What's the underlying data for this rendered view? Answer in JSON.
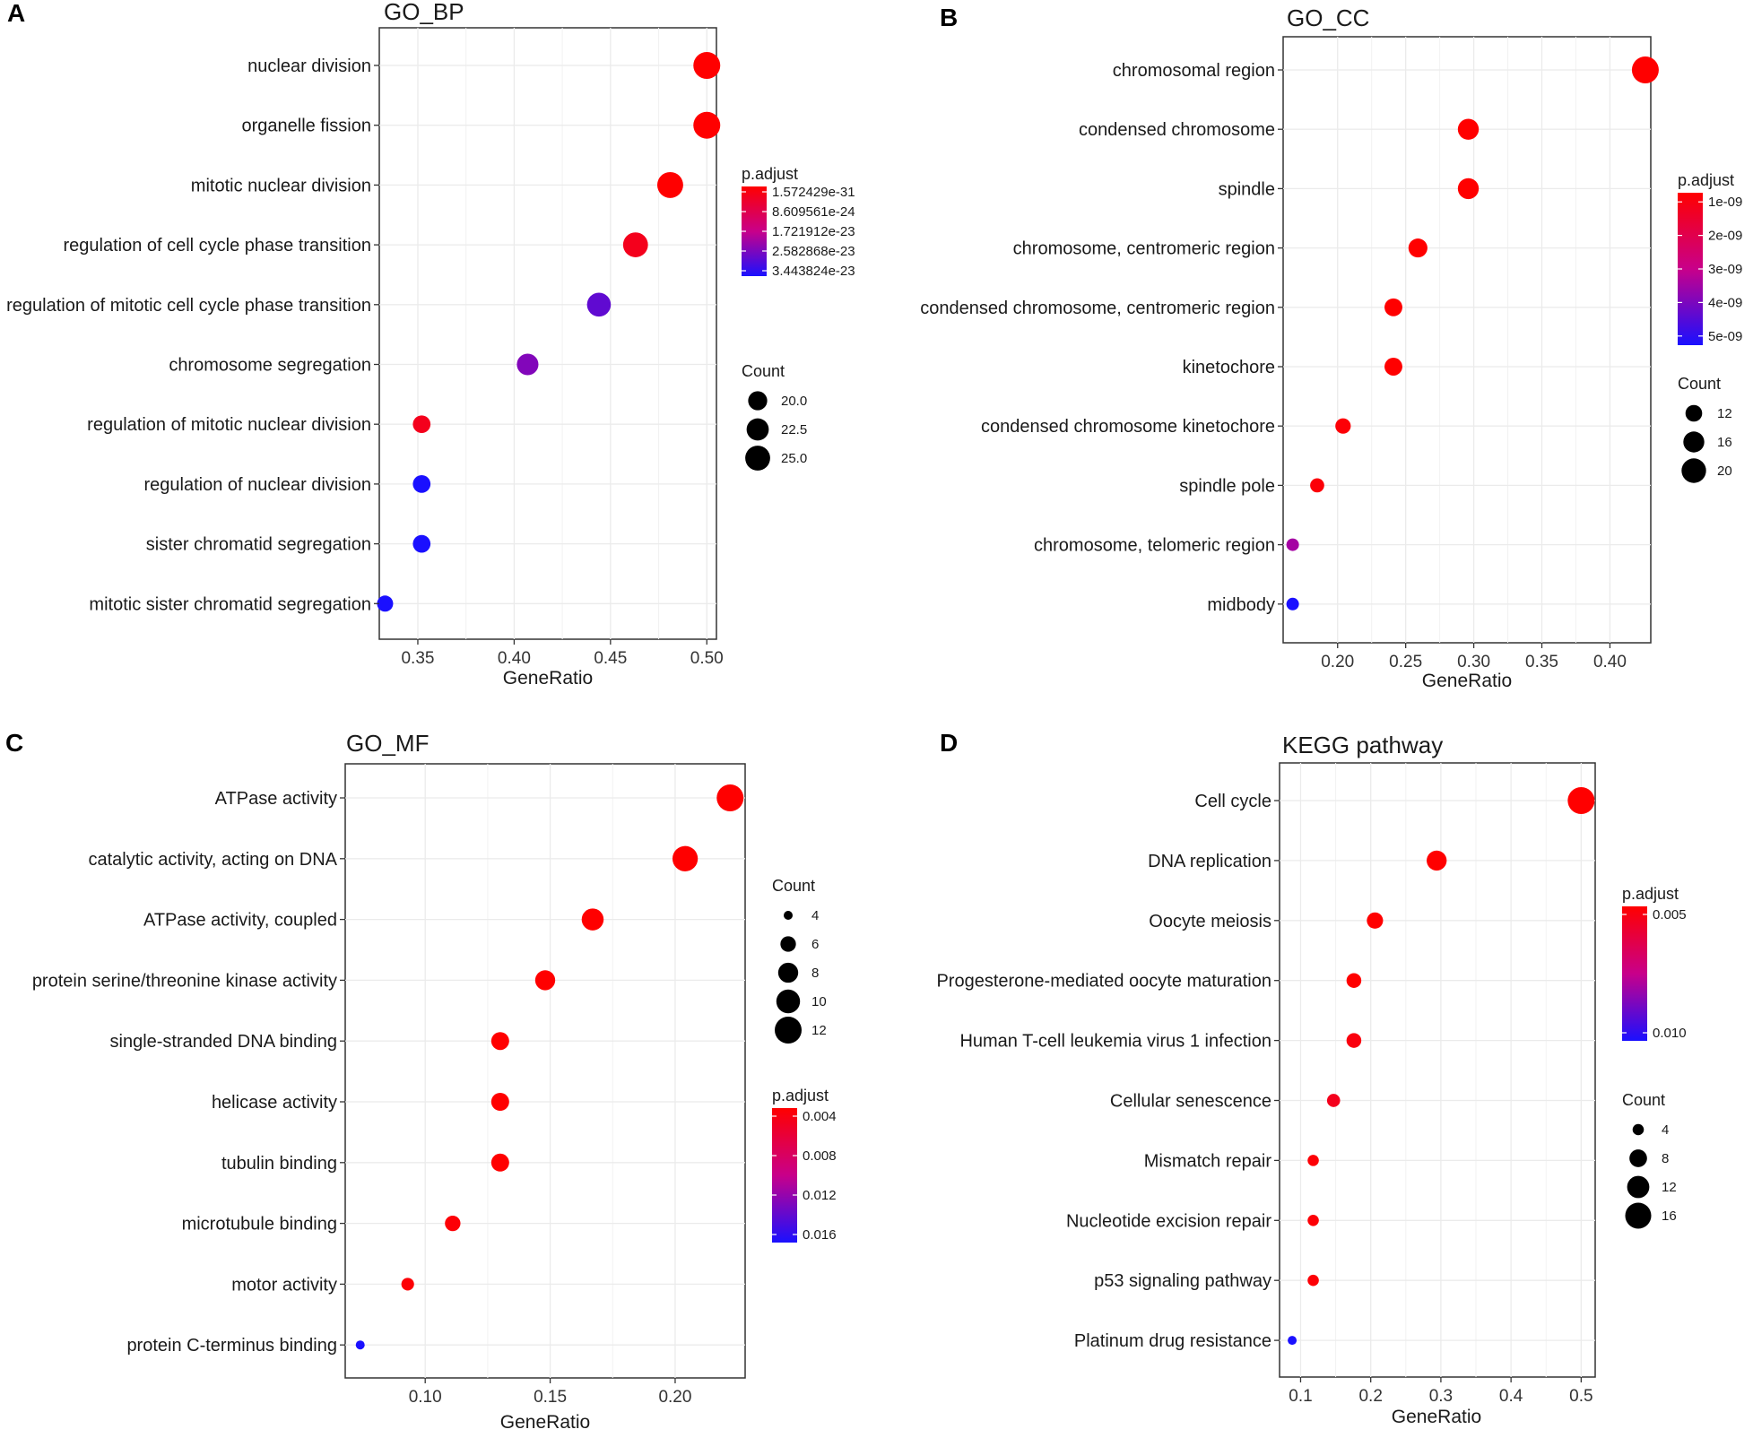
{
  "colors": {
    "low": "#0000ff",
    "high": "#ff0000",
    "dot_count_legend": "#000000",
    "grid": "#ebebeb"
  },
  "chart_data": [
    {
      "type": "scatter",
      "panel_label": "A",
      "title": "GO_BP",
      "xlabel": "GeneRatio",
      "ylabel": "",
      "xlim": [
        0.33,
        0.505
      ],
      "xticks": [
        0.35,
        0.4,
        0.45,
        0.5
      ],
      "xtick_labels": [
        "0.35",
        "0.40",
        "0.45",
        "0.50"
      ],
      "categories": [
        "nuclear division",
        "organelle fission",
        "mitotic nuclear division",
        "regulation of cell cycle phase transition",
        "regulation of mitotic cell cycle phase transition",
        "chromosome segregation",
        "regulation of mitotic nuclear division",
        "regulation of nuclear division",
        "sister chromatid segregation",
        "mitotic sister chromatid segregation"
      ],
      "x": [
        0.5,
        0.5,
        0.481,
        0.463,
        0.444,
        0.407,
        0.352,
        0.352,
        0.352,
        0.333
      ],
      "count": [
        27,
        27,
        26,
        25,
        24,
        22,
        19,
        19,
        19,
        18
      ],
      "color_fraction": [
        0.0,
        0.0,
        0.0,
        0.1,
        0.8,
        0.7,
        0.1,
        1.0,
        1.0,
        1.0
      ],
      "legend_order": [
        "color",
        "size"
      ],
      "color_legend": {
        "title": "p.adjust",
        "labels": [
          "1.572429e-31",
          "8.609561e-24",
          "1.721912e-23",
          "2.582868e-23",
          "3.443824e-23"
        ]
      },
      "size_legend": {
        "title": "Count",
        "labels": [
          "20.0",
          "22.5",
          "25.0"
        ],
        "values": [
          20,
          22.5,
          25
        ]
      }
    },
    {
      "type": "scatter",
      "panel_label": "B",
      "title": "GO_CC",
      "xlabel": "GeneRatio",
      "ylabel": "",
      "xlim": [
        0.16,
        0.43
      ],
      "xticks": [
        0.2,
        0.25,
        0.3,
        0.35,
        0.4
      ],
      "xtick_labels": [
        "0.20",
        "0.25",
        "0.30",
        "0.35",
        "0.40"
      ],
      "categories": [
        "chromosomal region",
        "condensed chromosome",
        "spindle",
        "chromosome, centromeric region",
        "condensed chromosome, centromeric region",
        "kinetochore",
        "condensed chromosome kinetochore",
        "spindle pole",
        "chromosome, telomeric region",
        "midbody"
      ],
      "x": [
        0.426,
        0.296,
        0.296,
        0.259,
        0.241,
        0.241,
        0.204,
        0.185,
        0.167,
        0.167
      ],
      "count": [
        23,
        16,
        16,
        14,
        13,
        13,
        11,
        10,
        9,
        9
      ],
      "color_fraction": [
        0.0,
        0.0,
        0.0,
        0.0,
        0.0,
        0.0,
        0.02,
        0.03,
        0.6,
        1.0
      ],
      "legend_order": [
        "color",
        "size"
      ],
      "color_legend": {
        "title": "p.adjust",
        "labels": [
          "1e-09",
          "2e-09",
          "3e-09",
          "4e-09",
          "5e-09"
        ]
      },
      "size_legend": {
        "title": "Count",
        "labels": [
          "12",
          "16",
          "20"
        ],
        "values": [
          12,
          16,
          20
        ]
      }
    },
    {
      "type": "scatter",
      "panel_label": "C",
      "title": "GO_MF",
      "xlabel": "GeneRatio",
      "ylabel": "",
      "xlim": [
        0.068,
        0.228
      ],
      "xticks": [
        0.1,
        0.15,
        0.2
      ],
      "xtick_labels": [
        "0.10",
        "0.15",
        "0.20"
      ],
      "categories": [
        "ATPase activity",
        "catalytic activity, acting on DNA",
        "ATPase activity, coupled",
        "protein serine/threonine kinase activity",
        "single-stranded DNA binding",
        "helicase activity",
        "tubulin binding",
        "microtubule binding",
        "motor activity",
        "protein C-terminus binding"
      ],
      "x": [
        0.222,
        0.204,
        0.167,
        0.148,
        0.13,
        0.13,
        0.13,
        0.111,
        0.093,
        0.074
      ],
      "count": [
        12,
        11,
        9,
        8,
        7,
        7,
        7,
        6,
        5,
        4
      ],
      "color_fraction": [
        0.0,
        0.0,
        0.0,
        0.0,
        0.0,
        0.0,
        0.0,
        0.02,
        0.02,
        1.0
      ],
      "legend_order": [
        "size",
        "color"
      ],
      "size_legend": {
        "title": "Count",
        "labels": [
          "4",
          "6",
          "8",
          "10",
          "12"
        ],
        "values": [
          4,
          6,
          8,
          10,
          12
        ]
      },
      "color_legend": {
        "title": "p.adjust",
        "labels": [
          "0.004",
          "0.008",
          "0.012",
          "0.016"
        ]
      }
    },
    {
      "type": "scatter",
      "panel_label": "D",
      "title": "KEGG pathway",
      "xlabel": "GeneRatio",
      "ylabel": "",
      "xlim": [
        0.07,
        0.52
      ],
      "xticks": [
        0.1,
        0.2,
        0.3,
        0.4,
        0.5
      ],
      "xtick_labels": [
        "0.1",
        "0.2",
        "0.3",
        "0.4",
        "0.5"
      ],
      "categories": [
        "Cell cycle",
        "DNA replication",
        "Oocyte meiosis",
        "Progesterone-mediated oocyte maturation",
        "Human T-cell leukemia virus 1 infection",
        "Cellular senescence",
        "Mismatch repair",
        "Nucleotide excision repair",
        "p53 signaling pathway",
        "Platinum drug resistance"
      ],
      "x": [
        0.5,
        0.294,
        0.206,
        0.176,
        0.176,
        0.147,
        0.118,
        0.118,
        0.118,
        0.088
      ],
      "count": [
        17,
        10,
        7,
        6,
        6,
        5,
        4,
        4,
        4,
        3
      ],
      "color_fraction": [
        0.0,
        0.0,
        0.0,
        0.0,
        0.05,
        0.1,
        0.02,
        0.02,
        0.02,
        1.0
      ],
      "legend_order": [
        "color",
        "size"
      ],
      "color_legend": {
        "title": "p.adjust",
        "labels": [
          "0.005",
          "0.010"
        ]
      },
      "size_legend": {
        "title": "Count",
        "labels": [
          "4",
          "8",
          "12",
          "16"
        ],
        "values": [
          4,
          8,
          12,
          16
        ]
      }
    }
  ]
}
